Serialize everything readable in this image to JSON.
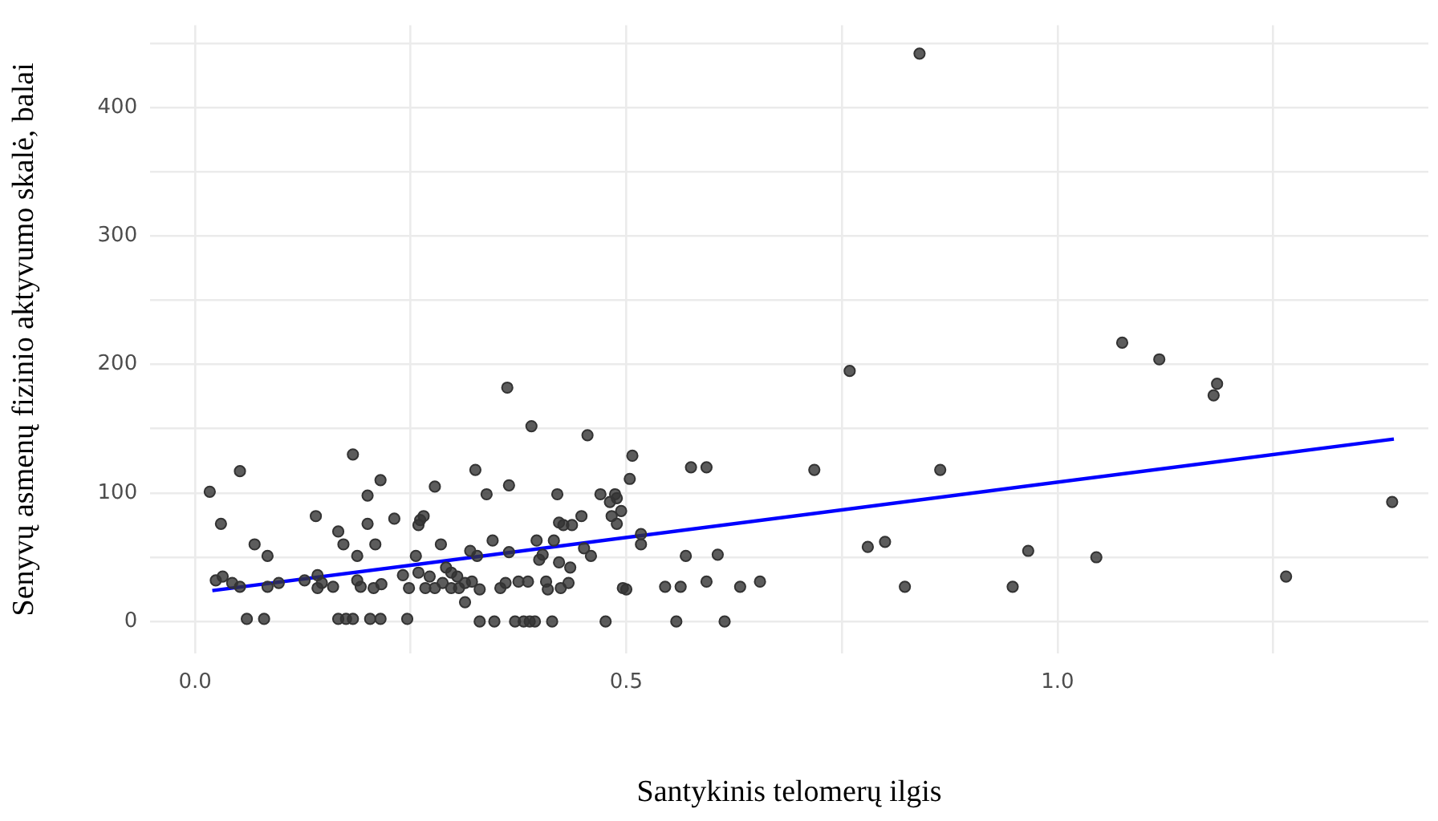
{
  "chart_data": {
    "type": "scatter",
    "xlabel": "Santykinis telomerų ilgis",
    "ylabel": "Senyvų asmenų fizinio aktyvumo skalė, balai",
    "xlim": [
      -0.052,
      1.43
    ],
    "ylim": [
      -25,
      464
    ],
    "xticks": [
      {
        "value": 0,
        "label": "0.0"
      },
      {
        "value": 0.25,
        "label": null
      },
      {
        "value": 0.5,
        "label": "0.5"
      },
      {
        "value": 0.75,
        "label": null
      },
      {
        "value": 1,
        "label": "1.0"
      },
      {
        "value": 1.25,
        "label": null
      }
    ],
    "yticks": [
      0,
      {
        "value": 50,
        "label": null
      },
      100,
      {
        "value": 150,
        "label": null
      },
      200,
      {
        "value": 250,
        "label": null
      },
      300,
      {
        "value": 350,
        "label": null
      },
      400,
      {
        "value": 450,
        "label": null
      }
    ],
    "grid": true,
    "legend": false,
    "marker": "circle",
    "series": [
      {
        "color": "#333333",
        "x": [
          0.655,
          0.718,
          0.759,
          0.78,
          0.8,
          0.823,
          0.864,
          0.948,
          0.966,
          1.045,
          1.075,
          1.118,
          1.185,
          1.181,
          1.265,
          1.388,
          0.84,
          0.362,
          0.39,
          0.455,
          0.507,
          0.504,
          0.325,
          0.364,
          0.338,
          0.42,
          0.47,
          0.487,
          0.489,
          0.481,
          0.494,
          0.483,
          0.489,
          0.422,
          0.427,
          0.437,
          0.448,
          0.575,
          0.593,
          0.517,
          0.517,
          0.345,
          0.396,
          0.416,
          0.364,
          0.319,
          0.327,
          0.403,
          0.399,
          0.422,
          0.451,
          0.459,
          0.435,
          0.569,
          0.606,
          0.291,
          0.304,
          0.313,
          0.321,
          0.33,
          0.297,
          0.354,
          0.36,
          0.375,
          0.386,
          0.407,
          0.409,
          0.424,
          0.433,
          0.313,
          0.496,
          0.5,
          0.545,
          0.563,
          0.593,
          0.632,
          0.33,
          0.347,
          0.371,
          0.381,
          0.388,
          0.394,
          0.414,
          0.476,
          0.558,
          0.614,
          0.017,
          0.052,
          0.03,
          0.183,
          0.215,
          0.2,
          0.278,
          0.14,
          0.166,
          0.172,
          0.2,
          0.209,
          0.231,
          0.261,
          0.265,
          0.259,
          0.069,
          0.084,
          0.188,
          0.256,
          0.285,
          0.024,
          0.032,
          0.043,
          0.052,
          0.084,
          0.097,
          0.127,
          0.142,
          0.147,
          0.16,
          0.142,
          0.188,
          0.192,
          0.216,
          0.207,
          0.241,
          0.248,
          0.259,
          0.267,
          0.272,
          0.278,
          0.287,
          0.297,
          0.306,
          0.06,
          0.08,
          0.166,
          0.175,
          0.183,
          0.203,
          0.215,
          0.246
        ],
        "values": [
          31,
          118,
          195,
          58,
          62,
          27,
          118,
          27,
          55,
          50,
          217,
          204,
          185,
          176,
          35,
          93,
          442,
          182,
          152,
          145,
          129,
          111,
          118,
          106,
          99,
          99,
          99,
          99,
          96,
          93,
          86,
          82,
          76,
          77,
          75,
          75,
          82,
          120,
          120,
          68,
          60,
          63,
          63,
          63,
          54,
          55,
          51,
          52,
          48,
          46,
          57,
          51,
          42,
          51,
          52,
          42,
          35,
          30,
          31,
          25,
          26,
          26,
          30,
          31,
          31,
          31,
          25,
          26,
          30,
          15,
          26,
          25,
          27,
          27,
          31,
          27,
          0,
          0,
          0,
          0,
          0,
          0,
          0,
          0,
          0,
          0,
          101,
          117,
          76,
          130,
          110,
          98,
          105,
          82,
          70,
          60,
          76,
          60,
          80,
          79,
          82,
          75,
          60,
          51,
          51,
          51,
          60,
          32,
          35,
          30,
          27,
          27,
          30,
          32,
          36,
          30,
          27,
          26,
          32,
          27,
          29,
          26,
          36,
          26,
          38,
          26,
          35,
          26,
          30,
          38,
          26,
          2,
          2,
          2,
          2,
          2,
          2,
          2,
          2
        ]
      },
      {
        "type": "line",
        "marker": "none",
        "color": "#0000ff",
        "x": [
          0.02,
          1.39
        ],
        "values": [
          24,
          142
        ]
      }
    ]
  }
}
